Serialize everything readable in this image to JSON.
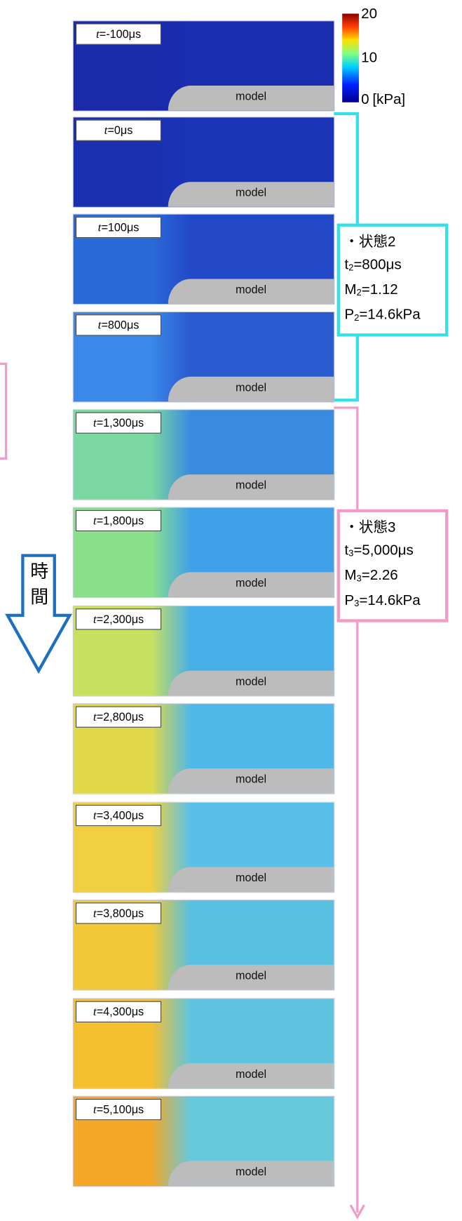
{
  "colorbar": {
    "ticks": [
      20,
      10,
      0
    ],
    "unit": "[kPa]"
  },
  "panels": [
    {
      "var": "t",
      "value": "=-100μs",
      "model": "model"
    },
    {
      "var": "t",
      "value": "=0μs",
      "model": "model"
    },
    {
      "var": "t",
      "value": "=100μs",
      "model": "model"
    },
    {
      "var": "t",
      "value": "=800μs",
      "model": "model"
    },
    {
      "var": "t",
      "value": "=1,300μs",
      "model": "model"
    },
    {
      "var": "t",
      "value": "=1,800μs",
      "model": "model"
    },
    {
      "var": "t",
      "value": "=2,300μs",
      "model": "model"
    },
    {
      "var": "t",
      "value": "=2,800μs",
      "model": "model"
    },
    {
      "var": "t",
      "value": "=3,400μs",
      "model": "model"
    },
    {
      "var": "t",
      "value": "=3,800μs",
      "model": "model"
    },
    {
      "var": "t",
      "value": "=4,300μs",
      "model": "model"
    },
    {
      "var": "t",
      "value": "=5,100μs",
      "model": "model"
    }
  ],
  "states": [
    {
      "title": "・状態2",
      "lines": [
        {
          "var": "t",
          "sub": "2",
          "rest": "=800μs"
        },
        {
          "var": "M",
          "sub": "2",
          "rest": "=1.12"
        },
        {
          "var": "P",
          "sub": "2",
          "rest": "=14.6kPa"
        }
      ]
    },
    {
      "title": "・状態3",
      "lines": [
        {
          "var": "t",
          "sub": "3",
          "rest": "=5,000μs"
        },
        {
          "var": "M",
          "sub": "3",
          "rest": "=2.26"
        },
        {
          "var": "P",
          "sub": "3",
          "rest": "=14.6kPa"
        }
      ]
    }
  ],
  "time_arrow": [
    "時",
    "間"
  ]
}
